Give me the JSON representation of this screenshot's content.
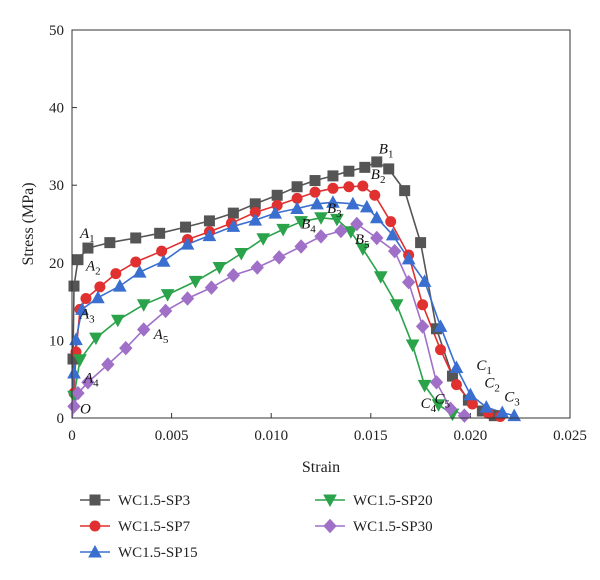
{
  "chart_data": {
    "type": "line",
    "title": "",
    "xlabel": "Strain",
    "ylabel": "Stress (MPa)",
    "xlim": [
      0,
      0.025
    ],
    "ylim": [
      0,
      50
    ],
    "x_ticks": [
      "0",
      "0.005",
      "0.010",
      "0.015",
      "0.020",
      "0.025"
    ],
    "y_ticks": [
      "0",
      "10",
      "20",
      "30",
      "40",
      "50"
    ],
    "legend_position": "bottom",
    "series": [
      {
        "name": "WC1.5-SP3",
        "color": "#555555",
        "marker": "square",
        "points": [
          [
            0,
            0
          ],
          [
            5e-05,
            7.6
          ],
          [
            0.0001,
            17
          ],
          [
            0.0003,
            20.4
          ],
          [
            0.0008,
            21.9
          ],
          [
            0.0019,
            22.6
          ],
          [
            0.0032,
            23.2
          ],
          [
            0.0044,
            23.8
          ],
          [
            0.0057,
            24.6
          ],
          [
            0.0069,
            25.4
          ],
          [
            0.0081,
            26.4
          ],
          [
            0.0092,
            27.6
          ],
          [
            0.0103,
            28.7
          ],
          [
            0.0113,
            29.8
          ],
          [
            0.0122,
            30.6
          ],
          [
            0.0131,
            31.2
          ],
          [
            0.0139,
            31.8
          ],
          [
            0.0147,
            32.3
          ],
          [
            0.0153,
            33
          ],
          [
            0.0159,
            32.1
          ],
          [
            0.0167,
            29.3
          ],
          [
            0.0175,
            22.6
          ],
          [
            0.0183,
            11.5
          ],
          [
            0.0191,
            5.4
          ],
          [
            0.0199,
            2.3
          ],
          [
            0.0206,
            0.9
          ],
          [
            0.0212,
            0.3
          ]
        ]
      },
      {
        "name": "WC1.5-SP7",
        "color": "#e03030",
        "marker": "circle",
        "points": [
          [
            0,
            0
          ],
          [
            0.0001,
            3.2
          ],
          [
            0.0002,
            8.5
          ],
          [
            0.0004,
            14
          ],
          [
            0.0007,
            15.4
          ],
          [
            0.0014,
            16.9
          ],
          [
            0.0022,
            18.6
          ],
          [
            0.0032,
            20.1
          ],
          [
            0.0045,
            21.5
          ],
          [
            0.0058,
            23
          ],
          [
            0.0069,
            24
          ],
          [
            0.008,
            25.1
          ],
          [
            0.0092,
            26.5
          ],
          [
            0.0103,
            27.4
          ],
          [
            0.0113,
            28.3
          ],
          [
            0.0122,
            29.1
          ],
          [
            0.0131,
            29.6
          ],
          [
            0.0139,
            29.8
          ],
          [
            0.0146,
            29.9
          ],
          [
            0.0152,
            28.7
          ],
          [
            0.016,
            25.3
          ],
          [
            0.0169,
            21
          ],
          [
            0.0176,
            14.6
          ],
          [
            0.0185,
            8.8
          ],
          [
            0.0193,
            4.3
          ],
          [
            0.0201,
            1.8
          ],
          [
            0.0209,
            0.6
          ],
          [
            0.0215,
            0.2
          ]
        ]
      },
      {
        "name": "WC1.5-SP15",
        "color": "#3a6fd0",
        "marker": "triangle-up",
        "points": [
          [
            0,
            0
          ],
          [
            0.0001,
            5.8
          ],
          [
            0.0002,
            10.1
          ],
          [
            0.0005,
            14
          ],
          [
            0.0013,
            15.5
          ],
          [
            0.0024,
            17
          ],
          [
            0.0034,
            18.8
          ],
          [
            0.0046,
            20.2
          ],
          [
            0.0058,
            22.4
          ],
          [
            0.0069,
            23.5
          ],
          [
            0.0081,
            24.7
          ],
          [
            0.0092,
            25.5
          ],
          [
            0.0102,
            26.4
          ],
          [
            0.0113,
            27
          ],
          [
            0.0123,
            27.6
          ],
          [
            0.0131,
            27.8
          ],
          [
            0.0141,
            27.6
          ],
          [
            0.0148,
            27.2
          ],
          [
            0.0153,
            25.8
          ],
          [
            0.0161,
            23.6
          ],
          [
            0.0169,
            20.5
          ],
          [
            0.0177,
            17.6
          ],
          [
            0.0185,
            11.8
          ],
          [
            0.0193,
            6.5
          ],
          [
            0.02,
            3
          ],
          [
            0.0208,
            1.4
          ],
          [
            0.0216,
            0.7
          ],
          [
            0.0222,
            0.3
          ]
        ]
      },
      {
        "name": "WC1.5-SP20",
        "color": "#2aa34a",
        "marker": "triangle-down",
        "points": [
          [
            0,
            0
          ],
          [
            0.0001,
            2.8
          ],
          [
            0.0004,
            7.5
          ],
          [
            0.0012,
            10.3
          ],
          [
            0.0023,
            12.6
          ],
          [
            0.0036,
            14.6
          ],
          [
            0.0048,
            15.9
          ],
          [
            0.0062,
            17.6
          ],
          [
            0.0074,
            19.4
          ],
          [
            0.0085,
            21.2
          ],
          [
            0.0096,
            23.1
          ],
          [
            0.0106,
            24.3
          ],
          [
            0.0115,
            25.3
          ],
          [
            0.0125,
            25.8
          ],
          [
            0.0133,
            25.6
          ],
          [
            0.014,
            24
          ],
          [
            0.0146,
            21.8
          ],
          [
            0.0155,
            18.2
          ],
          [
            0.0163,
            14.6
          ],
          [
            0.0171,
            9.4
          ],
          [
            0.0177,
            4.2
          ],
          [
            0.0184,
            1.7
          ],
          [
            0.0191,
            0.5
          ]
        ]
      },
      {
        "name": "WC1.5-SP30",
        "color": "#a070c8",
        "marker": "diamond",
        "points": [
          [
            0,
            0
          ],
          [
            0.0001,
            1.5
          ],
          [
            0.0003,
            3.2
          ],
          [
            0.0008,
            4.6
          ],
          [
            0.0018,
            6.9
          ],
          [
            0.0027,
            9
          ],
          [
            0.0036,
            11.4
          ],
          [
            0.0047,
            13.8
          ],
          [
            0.0058,
            15.4
          ],
          [
            0.007,
            16.8
          ],
          [
            0.0081,
            18.4
          ],
          [
            0.0093,
            19.4
          ],
          [
            0.0104,
            20.7
          ],
          [
            0.0115,
            22.1
          ],
          [
            0.0125,
            23.4
          ],
          [
            0.0135,
            24.1
          ],
          [
            0.0143,
            25
          ],
          [
            0.0153,
            23.2
          ],
          [
            0.0162,
            21.5
          ],
          [
            0.0169,
            17.5
          ],
          [
            0.0176,
            11.8
          ],
          [
            0.0183,
            4.6
          ],
          [
            0.019,
            1.2
          ],
          [
            0.0197,
            0.3
          ]
        ]
      }
    ],
    "annotations": [
      {
        "base": "O",
        "sub": "",
        "x": 0.0004,
        "y": 0.6
      },
      {
        "base": "A",
        "sub": "1",
        "x": 0.0004,
        "y": 23.2
      },
      {
        "base": "A",
        "sub": "2",
        "x": 0.0007,
        "y": 19.0
      },
      {
        "base": "A",
        "sub": "3",
        "x": 0.0004,
        "y": 12.8
      },
      {
        "base": "A",
        "sub": "4",
        "x": 0.0006,
        "y": 4.6
      },
      {
        "base": "A",
        "sub": "5",
        "x": 0.0041,
        "y": 10.2
      },
      {
        "base": "B",
        "sub": "1",
        "x": 0.0154,
        "y": 34.1
      },
      {
        "base": "B",
        "sub": "2",
        "x": 0.015,
        "y": 30.8
      },
      {
        "base": "B",
        "sub": "3",
        "x": 0.0128,
        "y": 26.4
      },
      {
        "base": "B",
        "sub": "4",
        "x": 0.0115,
        "y": 24.4
      },
      {
        "base": "B",
        "sub": "5",
        "x": 0.0142,
        "y": 22.4
      },
      {
        "base": "C",
        "sub": "1",
        "x": 0.0203,
        "y": 6.2
      },
      {
        "base": "C",
        "sub": "2",
        "x": 0.0207,
        "y": 3.9
      },
      {
        "base": "C",
        "sub": "3",
        "x": 0.0217,
        "y": 2.1
      },
      {
        "base": "C",
        "sub": "4",
        "x": 0.0175,
        "y": 1.3
      },
      {
        "base": "C",
        "sub": "5",
        "x": 0.0182,
        "y": 1.9
      }
    ]
  }
}
